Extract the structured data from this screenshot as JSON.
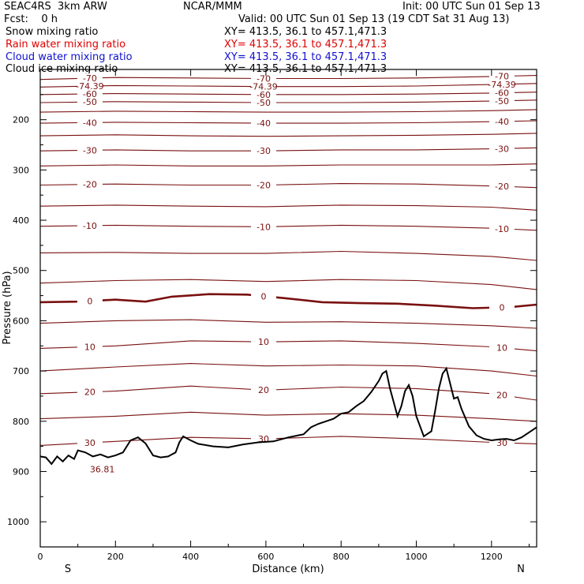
{
  "header": {
    "model": "SEAC4RS  3km ARW",
    "center": "NCAR/MMM",
    "init": "Init: 00 UTC Sun 01 Sep 13",
    "fcst": "Fcst:    0 h",
    "valid": "Valid: 00 UTC Sun 01 Sep 13 (19 CDT Sat 31 Aug 13)"
  },
  "fields": [
    {
      "name": "Snow mixing ratio",
      "xy": "XY= 413.5, 36.1 to 457.1,471.3",
      "color": "#000000"
    },
    {
      "name": "Rain water mixing ratio",
      "xy": "XY= 413.5, 36.1 to 457.1,471.3",
      "color": "#e00000"
    },
    {
      "name": "Cloud water mixing ratio",
      "xy": "XY= 413.5, 36.1 to 457.1,471.3",
      "color": "#1010d0"
    },
    {
      "name": "Cloud ice mixing ratio",
      "xy": "XY= 413.5, 36.1 to 457.1,471.3",
      "color": "#000000"
    }
  ],
  "chart_data": {
    "type": "line",
    "xlabel": "Distance (km)",
    "ylabel": "Pressure (hPa)",
    "xlim": [
      0,
      1320
    ],
    "ylim": [
      1050,
      100
    ],
    "x_ticks": [
      0,
      200,
      400,
      600,
      800,
      1000,
      1200
    ],
    "y_ticks": [
      200,
      300,
      400,
      500,
      600,
      700,
      800,
      900,
      1000
    ],
    "end_labels": {
      "left": "S",
      "right": "N"
    },
    "contour_color": "#7a1010",
    "isotherms": [
      {
        "label": "-70",
        "pts": [
          [
            0,
            120
          ],
          [
            200,
            116
          ],
          [
            400,
            117
          ],
          [
            600,
            118
          ],
          [
            800,
            118
          ],
          [
            1000,
            117
          ],
          [
            1200,
            114
          ],
          [
            1320,
            112
          ]
        ]
      },
      {
        "label": "-74.39",
        "pts": [
          [
            0,
            135
          ],
          [
            200,
            132
          ],
          [
            400,
            133
          ],
          [
            600,
            134
          ],
          [
            800,
            134
          ],
          [
            1000,
            133
          ],
          [
            1200,
            130
          ],
          [
            1320,
            128
          ]
        ]
      },
      {
        "label": "-60",
        "pts": [
          [
            0,
            150
          ],
          [
            200,
            148
          ],
          [
            400,
            149
          ],
          [
            600,
            150
          ],
          [
            800,
            150
          ],
          [
            1000,
            149
          ],
          [
            1200,
            147
          ],
          [
            1320,
            145
          ]
        ]
      },
      {
        "label": "-50",
        "pts": [
          [
            0,
            166
          ],
          [
            200,
            164
          ],
          [
            400,
            165
          ],
          [
            600,
            166
          ],
          [
            800,
            166
          ],
          [
            1000,
            165
          ],
          [
            1200,
            163
          ],
          [
            1320,
            161
          ]
        ]
      },
      {
        "label": "",
        "pts": [
          [
            0,
            185
          ],
          [
            200,
            183
          ],
          [
            400,
            184
          ],
          [
            600,
            185
          ],
          [
            800,
            185
          ],
          [
            1000,
            184
          ],
          [
            1200,
            182
          ],
          [
            1320,
            180
          ]
        ]
      },
      {
        "label": "-40",
        "pts": [
          [
            0,
            207
          ],
          [
            200,
            205
          ],
          [
            400,
            206
          ],
          [
            600,
            207
          ],
          [
            800,
            207
          ],
          [
            1000,
            206
          ],
          [
            1200,
            204
          ],
          [
            1320,
            202
          ]
        ]
      },
      {
        "label": "",
        "pts": [
          [
            0,
            232
          ],
          [
            200,
            230
          ],
          [
            400,
            232
          ],
          [
            600,
            233
          ],
          [
            800,
            232
          ],
          [
            1000,
            231
          ],
          [
            1200,
            229
          ],
          [
            1320,
            227
          ]
        ]
      },
      {
        "label": "-30",
        "pts": [
          [
            0,
            262
          ],
          [
            200,
            260
          ],
          [
            400,
            262
          ],
          [
            600,
            262
          ],
          [
            800,
            260
          ],
          [
            1000,
            260
          ],
          [
            1200,
            258
          ],
          [
            1320,
            256
          ]
        ]
      },
      {
        "label": "",
        "pts": [
          [
            0,
            292
          ],
          [
            200,
            290
          ],
          [
            400,
            292
          ],
          [
            600,
            292
          ],
          [
            800,
            290
          ],
          [
            1000,
            290
          ],
          [
            1200,
            290
          ],
          [
            1320,
            288
          ]
        ]
      },
      {
        "label": "-20",
        "pts": [
          [
            0,
            330
          ],
          [
            200,
            328
          ],
          [
            400,
            330
          ],
          [
            600,
            330
          ],
          [
            800,
            327
          ],
          [
            1000,
            328
          ],
          [
            1200,
            332
          ],
          [
            1320,
            335
          ]
        ]
      },
      {
        "label": "",
        "pts": [
          [
            0,
            372
          ],
          [
            200,
            370
          ],
          [
            400,
            372
          ],
          [
            600,
            373
          ],
          [
            800,
            370
          ],
          [
            1000,
            371
          ],
          [
            1200,
            374
          ],
          [
            1320,
            380
          ]
        ]
      },
      {
        "label": "-10",
        "pts": [
          [
            0,
            412
          ],
          [
            200,
            410
          ],
          [
            400,
            412
          ],
          [
            600,
            413
          ],
          [
            800,
            410
          ],
          [
            1000,
            412
          ],
          [
            1200,
            416
          ],
          [
            1320,
            420
          ]
        ]
      },
      {
        "label": "",
        "pts": [
          [
            0,
            465
          ],
          [
            200,
            464
          ],
          [
            400,
            466
          ],
          [
            600,
            466
          ],
          [
            800,
            462
          ],
          [
            1000,
            466
          ],
          [
            1200,
            472
          ],
          [
            1320,
            480
          ]
        ]
      },
      {
        "label": "",
        "pts": [
          [
            0,
            525
          ],
          [
            200,
            520
          ],
          [
            400,
            518
          ],
          [
            600,
            522
          ],
          [
            800,
            518
          ],
          [
            1000,
            520
          ],
          [
            1200,
            528
          ],
          [
            1320,
            538
          ]
        ]
      },
      {
        "label": "0",
        "bold": true,
        "pts": [
          [
            0,
            563
          ],
          [
            100,
            562
          ],
          [
            200,
            558
          ],
          [
            280,
            562
          ],
          [
            350,
            552
          ],
          [
            450,
            547
          ],
          [
            550,
            548
          ],
          [
            650,
            555
          ],
          [
            750,
            563
          ],
          [
            850,
            565
          ],
          [
            950,
            566
          ],
          [
            1050,
            570
          ],
          [
            1150,
            575
          ],
          [
            1250,
            573
          ],
          [
            1320,
            568
          ]
        ]
      },
      {
        "label": "",
        "pts": [
          [
            0,
            605
          ],
          [
            200,
            600
          ],
          [
            400,
            598
          ],
          [
            600,
            603
          ],
          [
            800,
            602
          ],
          [
            1000,
            605
          ],
          [
            1200,
            610
          ],
          [
            1320,
            615
          ]
        ]
      },
      {
        "label": "10",
        "pts": [
          [
            0,
            655
          ],
          [
            200,
            650
          ],
          [
            400,
            640
          ],
          [
            600,
            642
          ],
          [
            800,
            640
          ],
          [
            1000,
            645
          ],
          [
            1200,
            652
          ],
          [
            1320,
            660
          ]
        ]
      },
      {
        "label": "",
        "pts": [
          [
            0,
            700
          ],
          [
            200,
            692
          ],
          [
            400,
            685
          ],
          [
            600,
            690
          ],
          [
            800,
            688
          ],
          [
            1000,
            690
          ],
          [
            1200,
            700
          ],
          [
            1320,
            710
          ]
        ]
      },
      {
        "label": "20",
        "pts": [
          [
            0,
            745
          ],
          [
            200,
            740
          ],
          [
            400,
            730
          ],
          [
            600,
            738
          ],
          [
            800,
            732
          ],
          [
            1000,
            735
          ],
          [
            1200,
            745
          ],
          [
            1320,
            758
          ]
        ]
      },
      {
        "label": "",
        "pts": [
          [
            0,
            795
          ],
          [
            200,
            790
          ],
          [
            400,
            782
          ],
          [
            600,
            788
          ],
          [
            800,
            785
          ],
          [
            1000,
            788
          ],
          [
            1200,
            795
          ],
          [
            1320,
            800
          ]
        ]
      },
      {
        "label": "30",
        "pts": [
          [
            0,
            848
          ],
          [
            200,
            840
          ],
          [
            400,
            832
          ],
          [
            600,
            835
          ],
          [
            800,
            830
          ],
          [
            1000,
            835
          ],
          [
            1200,
            842
          ],
          [
            1320,
            845
          ]
        ]
      }
    ],
    "terrain": {
      "name": "terrain",
      "pts": [
        [
          0,
          870
        ],
        [
          15,
          872
        ],
        [
          30,
          885
        ],
        [
          45,
          870
        ],
        [
          60,
          880
        ],
        [
          75,
          868
        ],
        [
          90,
          875
        ],
        [
          100,
          858
        ],
        [
          120,
          862
        ],
        [
          140,
          870
        ],
        [
          160,
          866
        ],
        [
          180,
          872
        ],
        [
          200,
          868
        ],
        [
          220,
          862
        ],
        [
          240,
          838
        ],
        [
          260,
          832
        ],
        [
          280,
          844
        ],
        [
          300,
          868
        ],
        [
          320,
          872
        ],
        [
          340,
          870
        ],
        [
          360,
          862
        ],
        [
          370,
          842
        ],
        [
          380,
          830
        ],
        [
          400,
          838
        ],
        [
          420,
          845
        ],
        [
          460,
          850
        ],
        [
          500,
          852
        ],
        [
          540,
          846
        ],
        [
          580,
          842
        ],
        [
          620,
          840
        ],
        [
          660,
          832
        ],
        [
          700,
          826
        ],
        [
          720,
          812
        ],
        [
          740,
          805
        ],
        [
          760,
          800
        ],
        [
          780,
          795
        ],
        [
          800,
          785
        ],
        [
          820,
          782
        ],
        [
          840,
          770
        ],
        [
          860,
          760
        ],
        [
          880,
          742
        ],
        [
          900,
          720
        ],
        [
          910,
          705
        ],
        [
          920,
          700
        ],
        [
          930,
          735
        ],
        [
          950,
          790
        ],
        [
          960,
          770
        ],
        [
          970,
          740
        ],
        [
          980,
          728
        ],
        [
          990,
          750
        ],
        [
          1000,
          790
        ],
        [
          1020,
          830
        ],
        [
          1040,
          820
        ],
        [
          1050,
          780
        ],
        [
          1060,
          735
        ],
        [
          1070,
          705
        ],
        [
          1080,
          695
        ],
        [
          1090,
          725
        ],
        [
          1100,
          755
        ],
        [
          1110,
          752
        ],
        [
          1120,
          775
        ],
        [
          1140,
          810
        ],
        [
          1160,
          828
        ],
        [
          1180,
          835
        ],
        [
          1200,
          838
        ],
        [
          1220,
          836
        ],
        [
          1240,
          835
        ],
        [
          1260,
          838
        ],
        [
          1280,
          832
        ],
        [
          1300,
          822
        ],
        [
          1320,
          812
        ]
      ]
    },
    "annotations": [
      {
        "text": "36.81",
        "x": 165,
        "p": 880
      }
    ]
  }
}
